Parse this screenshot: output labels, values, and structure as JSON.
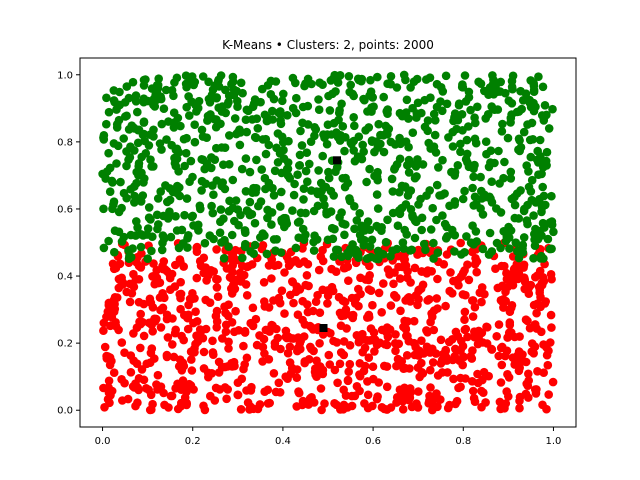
{
  "chart_data": {
    "type": "scatter",
    "title": "K-Means • Clusters: 2, points: 2000",
    "xlabel": "",
    "ylabel": "",
    "xlim": [
      -0.05,
      1.05
    ],
    "ylim": [
      -0.05,
      1.05
    ],
    "xticks": [
      "0.0",
      "0.2",
      "0.4",
      "0.6",
      "0.8",
      "1.0"
    ],
    "yticks": [
      "0.0",
      "0.2",
      "0.4",
      "0.6",
      "0.8",
      "1.0"
    ],
    "grid": false,
    "legend": "none",
    "n_points": 2000,
    "series": [
      {
        "color": "#ff0000",
        "x_range": [
          0.0,
          1.0
        ],
        "y_range": [
          0.0,
          0.5
        ],
        "count": 1000
      },
      {
        "color": "#008000",
        "x_range": [
          0.0,
          1.0
        ],
        "y_range": [
          0.45,
          1.0
        ],
        "count": 1000
      }
    ],
    "centroids": {
      "color": "#000000",
      "points": [
        {
          "x": 0.49,
          "y": 0.245
        },
        {
          "x": 0.52,
          "y": 0.745
        }
      ]
    }
  }
}
